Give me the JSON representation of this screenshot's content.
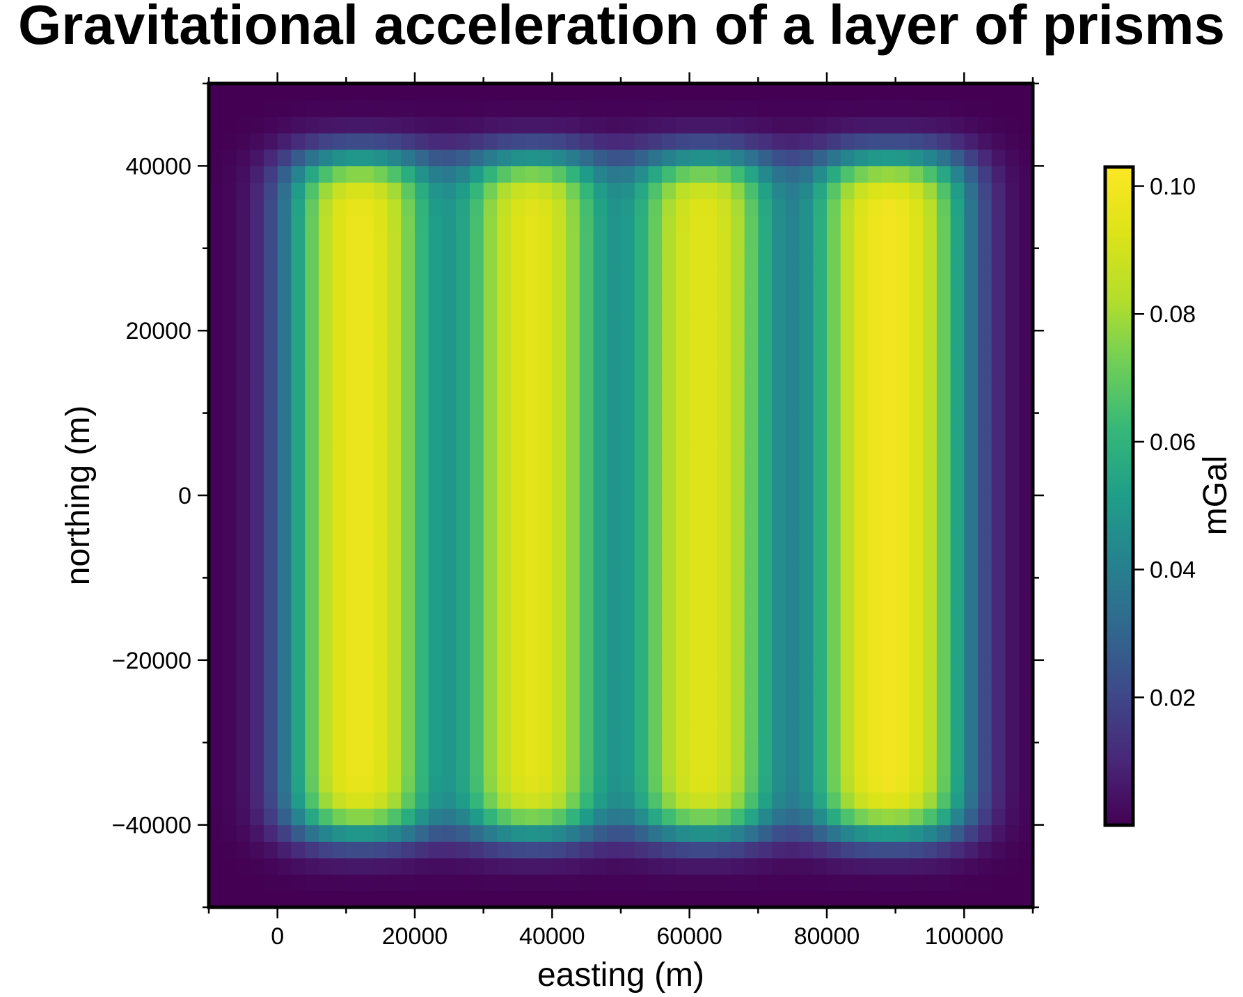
{
  "chart_data": {
    "type": "heatmap",
    "title": "Gravitational acceleration of a layer of prisms",
    "xlabel": "easting (m)",
    "ylabel": "northing (m)",
    "xlim": [
      -10000,
      110000
    ],
    "ylim": [
      -50000,
      50000
    ],
    "x_ticks": [
      0,
      20000,
      40000,
      60000,
      80000,
      100000
    ],
    "x_tick_labels": [
      "0",
      "20000",
      "40000",
      "60000",
      "80000",
      "100000"
    ],
    "y_ticks": [
      -40000,
      -20000,
      0,
      20000,
      40000
    ],
    "y_tick_labels": [
      "−40000",
      "−20000",
      "0",
      "20000",
      "40000"
    ],
    "colorbar": {
      "label": "mGal",
      "colormap": "viridis",
      "range": [
        0,
        0.103
      ],
      "ticks": [
        0.02,
        0.04,
        0.06,
        0.08,
        0.1
      ],
      "tick_labels": [
        "0.02",
        "0.04",
        "0.06",
        "0.08",
        "0.10"
      ]
    },
    "grid": false,
    "prisms": [
      {
        "easting_range": [
          1000,
          23000
        ],
        "northing_range": [
          -41000,
          41000
        ],
        "peak_value": 0.103
      },
      {
        "easting_range": [
          26000,
          48000
        ],
        "northing_range": [
          -41000,
          41000
        ],
        "peak_value": 0.1
      },
      {
        "easting_range": [
          51000,
          73000
        ],
        "northing_range": [
          -41000,
          41000
        ],
        "peak_value": 0.099
      },
      {
        "easting_range": [
          77000,
          101000
        ],
        "northing_range": [
          -41000,
          41000
        ],
        "peak_value": 0.103
      }
    ]
  }
}
